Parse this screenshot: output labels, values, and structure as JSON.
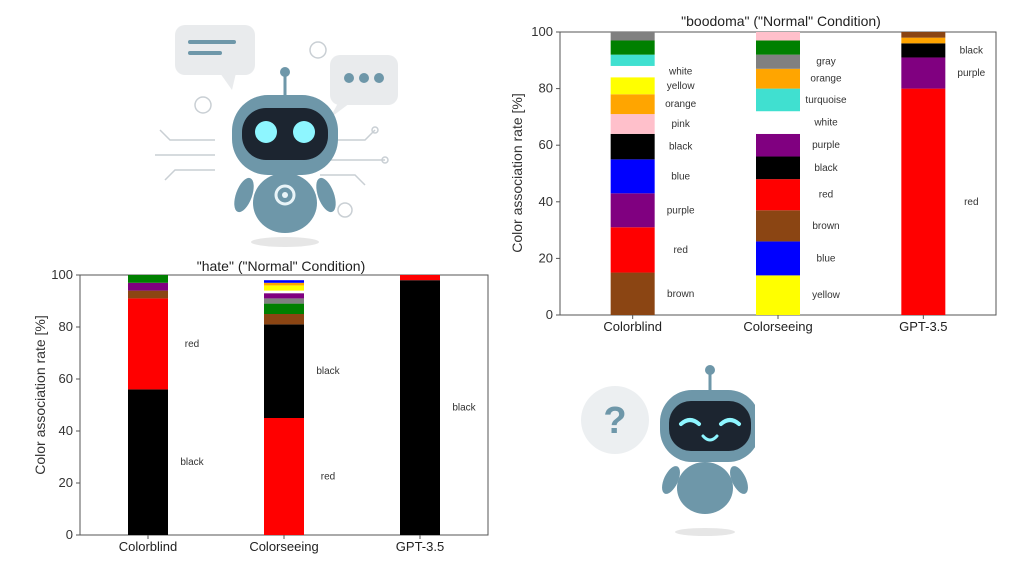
{
  "chart_data": [
    {
      "id": "boodoma",
      "type": "bar",
      "stacked": true,
      "title": "\"boodoma\" (\"Normal\" Condition)",
      "ylabel": "Color association rate [%]",
      "xlabel": "",
      "ylim": [
        0,
        100
      ],
      "yticks": [
        0,
        20,
        40,
        60,
        80,
        100
      ],
      "grid": false,
      "categories": [
        "Colorblind",
        "Colorseeing",
        "GPT-3.5"
      ],
      "bars": [
        {
          "category": "Colorblind",
          "segments": [
            {
              "color_name": "brown",
              "value": 15,
              "fill": "#8b4513",
              "label": "brown"
            },
            {
              "color_name": "red",
              "value": 16,
              "fill": "#ff0000",
              "label": "red"
            },
            {
              "color_name": "purple",
              "value": 12,
              "fill": "#800080",
              "label": "purple"
            },
            {
              "color_name": "blue",
              "value": 12,
              "fill": "#0000ff",
              "label": "blue"
            },
            {
              "color_name": "black",
              "value": 9,
              "fill": "#000000",
              "label": "black"
            },
            {
              "color_name": "pink",
              "value": 7,
              "fill": "#ffc0cb",
              "label": "pink"
            },
            {
              "color_name": "orange",
              "value": 7,
              "fill": "#ffa500",
              "label": "orange"
            },
            {
              "color_name": "yellow",
              "value": 6,
              "fill": "#ffff00",
              "label": "yellow"
            },
            {
              "color_name": "white",
              "value": 4,
              "fill": "#ffffff",
              "label": "white"
            },
            {
              "color_name": "turquoise",
              "value": 4,
              "fill": "#40e0d0",
              "label": ""
            },
            {
              "color_name": "green",
              "value": 5,
              "fill": "#008000",
              "label": ""
            },
            {
              "color_name": "gray",
              "value": 3,
              "fill": "#808080",
              "label": ""
            }
          ]
        },
        {
          "category": "Colorseeing",
          "segments": [
            {
              "color_name": "yellow",
              "value": 14,
              "fill": "#ffff00",
              "label": "yellow"
            },
            {
              "color_name": "blue",
              "value": 12,
              "fill": "#0000ff",
              "label": "blue"
            },
            {
              "color_name": "brown",
              "value": 11,
              "fill": "#8b4513",
              "label": "brown"
            },
            {
              "color_name": "red",
              "value": 11,
              "fill": "#ff0000",
              "label": "red"
            },
            {
              "color_name": "black",
              "value": 8,
              "fill": "#000000",
              "label": "black"
            },
            {
              "color_name": "purple",
              "value": 8,
              "fill": "#800080",
              "label": "purple"
            },
            {
              "color_name": "white",
              "value": 8,
              "fill": "#ffffff",
              "label": "white"
            },
            {
              "color_name": "turquoise",
              "value": 8,
              "fill": "#40e0d0",
              "label": "turquoise"
            },
            {
              "color_name": "orange",
              "value": 7,
              "fill": "#ffa500",
              "label": "orange"
            },
            {
              "color_name": "gray",
              "value": 5,
              "fill": "#808080",
              "label": "gray"
            },
            {
              "color_name": "green",
              "value": 5,
              "fill": "#008000",
              "label": ""
            },
            {
              "color_name": "pink",
              "value": 3,
              "fill": "#ffc0cb",
              "label": ""
            }
          ]
        },
        {
          "category": "GPT-3.5",
          "segments": [
            {
              "color_name": "red",
              "value": 80,
              "fill": "#ff0000",
              "label": "red"
            },
            {
              "color_name": "purple",
              "value": 11,
              "fill": "#800080",
              "label": "purple"
            },
            {
              "color_name": "black",
              "value": 5,
              "fill": "#000000",
              "label": "black"
            },
            {
              "color_name": "orange",
              "value": 2,
              "fill": "#ffa500",
              "label": ""
            },
            {
              "color_name": "brown",
              "value": 2,
              "fill": "#8b4513",
              "label": ""
            }
          ]
        }
      ]
    },
    {
      "id": "hate",
      "type": "bar",
      "stacked": true,
      "title": "\"hate\" (\"Normal\" Condition)",
      "ylabel": "Color association rate [%]",
      "xlabel": "",
      "ylim": [
        0,
        100
      ],
      "yticks": [
        0,
        20,
        40,
        60,
        80,
        100
      ],
      "grid": false,
      "categories": [
        "Colorblind",
        "Colorseeing",
        "GPT-3.5"
      ],
      "bars": [
        {
          "category": "Colorblind",
          "segments": [
            {
              "color_name": "black",
              "value": 56,
              "fill": "#000000",
              "label": "black"
            },
            {
              "color_name": "red",
              "value": 35,
              "fill": "#ff0000",
              "label": "red"
            },
            {
              "color_name": "brown",
              "value": 3,
              "fill": "#8b4513",
              "label": ""
            },
            {
              "color_name": "purple",
              "value": 3,
              "fill": "#800080",
              "label": ""
            },
            {
              "color_name": "green",
              "value": 3,
              "fill": "#008000",
              "label": ""
            }
          ]
        },
        {
          "category": "Colorseeing",
          "segments": [
            {
              "color_name": "red",
              "value": 45,
              "fill": "#ff0000",
              "label": "red"
            },
            {
              "color_name": "black",
              "value": 36,
              "fill": "#000000",
              "label": "black"
            },
            {
              "color_name": "brown",
              "value": 4,
              "fill": "#8b4513",
              "label": ""
            },
            {
              "color_name": "green",
              "value": 4,
              "fill": "#008000",
              "label": ""
            },
            {
              "color_name": "gray",
              "value": 2,
              "fill": "#808080",
              "label": ""
            },
            {
              "color_name": "purple",
              "value": 2,
              "fill": "#800080",
              "label": ""
            },
            {
              "color_name": "white",
              "value": 1,
              "fill": "#ffffff",
              "label": ""
            },
            {
              "color_name": "yellow",
              "value": 2,
              "fill": "#ffff00",
              "label": ""
            },
            {
              "color_name": "orange",
              "value": 1,
              "fill": "#ffa500",
              "label": ""
            },
            {
              "color_name": "blue",
              "value": 1,
              "fill": "#0000ff",
              "label": ""
            }
          ]
        },
        {
          "category": "GPT-3.5",
          "segments": [
            {
              "color_name": "black",
              "value": 98,
              "fill": "#000000",
              "label": "black"
            },
            {
              "color_name": "red",
              "value": 2,
              "fill": "#ff0000",
              "label": ""
            }
          ]
        }
      ]
    }
  ],
  "decorations": [
    {
      "name": "chatbot-robot-illustration",
      "icon": "robot-with-speech-bubbles-icon",
      "accent": "#6e97a9",
      "eye_color": "#8ef6ff"
    },
    {
      "name": "confused-robot-illustration",
      "icon": "robot-question-mark-icon",
      "accent": "#6e97a9",
      "eye_color": "#8ef6ff"
    }
  ]
}
